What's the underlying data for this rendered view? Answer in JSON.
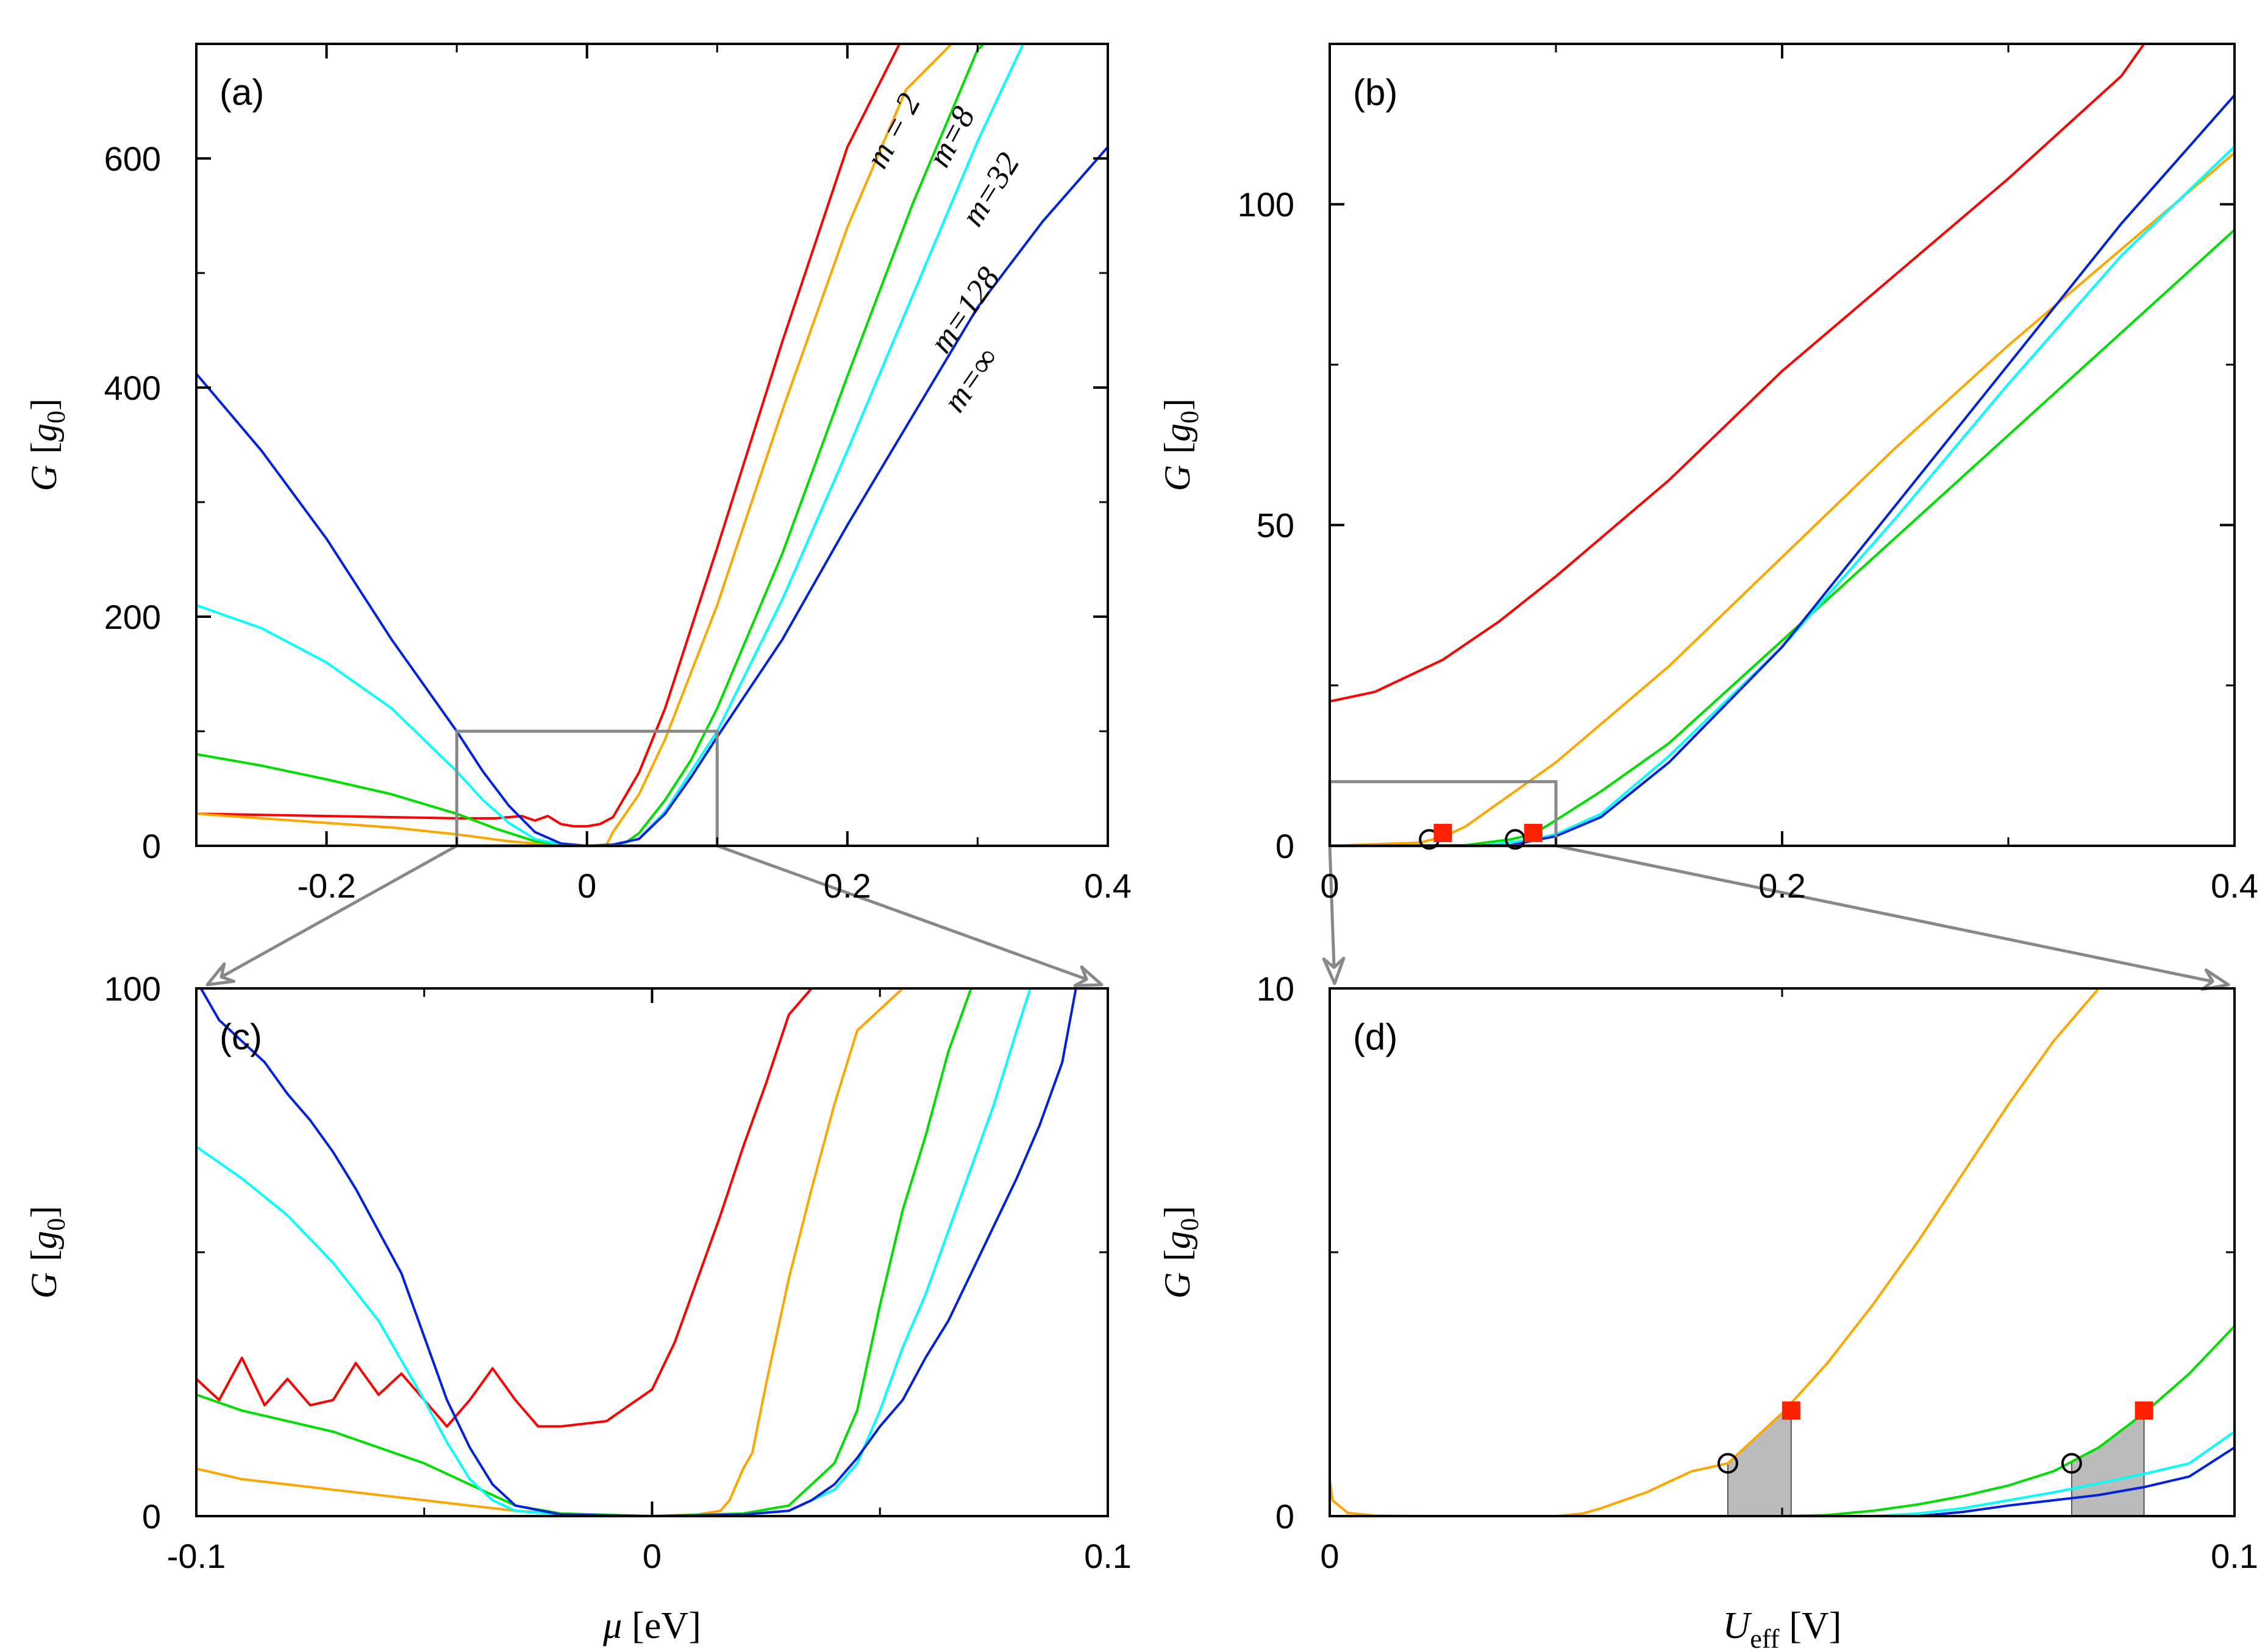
{
  "colors": {
    "m2": "#ff0000",
    "m8": "#ffa500",
    "m32": "#00dd00",
    "m128": "#00ffff",
    "minf": "#0022dd",
    "frame": "#000000",
    "zoom": "#888888",
    "marker_open": "#000000",
    "marker_filled": "#ff2200",
    "shade": "#bbbbbb"
  },
  "chart_data": [
    {
      "id": "a",
      "type": "line",
      "panel_label": "(a)",
      "xlim": [
        -0.3,
        0.4
      ],
      "ylim": [
        0,
        700
      ],
      "x_ticks": [
        -0.2,
        0,
        0.2,
        0.4
      ],
      "x_tick_labels": [
        "-0.2",
        "0",
        "0.2",
        "0.4"
      ],
      "y_ticks": [
        0,
        200,
        400,
        600
      ],
      "y_tick_labels": [
        "0",
        "200",
        "400",
        "600"
      ],
      "ylabel_var": "G",
      "ylabel_unit": "g",
      "ylabel_unit_sub": "0",
      "xlabel": "",
      "grid": false,
      "series": [
        {
          "key": "m2",
          "name": "m = 2",
          "x": [
            -0.3,
            -0.25,
            -0.2,
            -0.15,
            -0.1,
            -0.07,
            -0.05,
            -0.04,
            -0.03,
            -0.02,
            -0.01,
            0.0,
            0.01,
            0.02,
            0.04,
            0.06,
            0.1,
            0.15,
            0.2,
            0.24
          ],
          "y": [
            28,
            27,
            26,
            25,
            24,
            24,
            26,
            22,
            26,
            19,
            17,
            17,
            19,
            25,
            64,
            120,
            260,
            440,
            610,
            700
          ]
        },
        {
          "key": "m8",
          "name": "m=8",
          "x": [
            -0.3,
            -0.25,
            -0.2,
            -0.15,
            -0.1,
            -0.06,
            -0.03,
            0.0,
            0.015,
            0.02,
            0.04,
            0.06,
            0.1,
            0.15,
            0.2,
            0.245,
            0.28
          ],
          "y": [
            28,
            24,
            20,
            16,
            10,
            4,
            1,
            0,
            1,
            12,
            45,
            93,
            210,
            380,
            540,
            660,
            700
          ]
        },
        {
          "key": "m32",
          "name": "m=32",
          "x": [
            -0.3,
            -0.25,
            -0.2,
            -0.15,
            -0.1,
            -0.07,
            -0.04,
            -0.02,
            0.0,
            0.02,
            0.03,
            0.04,
            0.06,
            0.08,
            0.1,
            0.15,
            0.2,
            0.25,
            0.3,
            0.305
          ],
          "y": [
            80,
            70,
            58,
            45,
            28,
            15,
            4,
            1,
            0,
            1,
            3,
            11,
            40,
            75,
            120,
            255,
            410,
            560,
            695,
            700
          ]
        },
        {
          "key": "m128",
          "name": "m=128",
          "x": [
            -0.3,
            -0.25,
            -0.2,
            -0.15,
            -0.1,
            -0.08,
            -0.06,
            -0.04,
            -0.02,
            0.0,
            0.02,
            0.04,
            0.06,
            0.08,
            0.1,
            0.15,
            0.2,
            0.25,
            0.3,
            0.335
          ],
          "y": [
            210,
            190,
            160,
            120,
            65,
            40,
            20,
            6,
            1,
            0,
            1,
            6,
            30,
            65,
            100,
            215,
            345,
            480,
            615,
            700
          ]
        },
        {
          "key": "minf",
          "name": "m=∞",
          "x": [
            -0.3,
            -0.25,
            -0.2,
            -0.15,
            -0.1,
            -0.08,
            -0.06,
            -0.04,
            -0.02,
            0.0,
            0.02,
            0.04,
            0.06,
            0.08,
            0.1,
            0.15,
            0.2,
            0.25,
            0.3,
            0.35,
            0.4
          ],
          "y": [
            412,
            345,
            268,
            180,
            100,
            65,
            35,
            12,
            2,
            0,
            1,
            6,
            28,
            60,
            95,
            180,
            280,
            375,
            470,
            545,
            610
          ]
        }
      ],
      "annotations": [
        "m = 2",
        "m=8",
        "m=32",
        "m=128",
        "m=∞"
      ],
      "zoom_box": {
        "x": [
          -0.1,
          0.1
        ],
        "y": [
          0,
          100
        ]
      }
    },
    {
      "id": "b",
      "type": "line",
      "panel_label": "(b)",
      "xlim": [
        0,
        0.4
      ],
      "ylim": [
        0,
        125
      ],
      "x_ticks": [
        0,
        0.2,
        0.4
      ],
      "x_tick_labels": [
        "0",
        "0.2",
        "0.4"
      ],
      "y_ticks": [
        0,
        50,
        100
      ],
      "y_tick_labels": [
        "0",
        "50",
        "100"
      ],
      "ylabel_var": "G",
      "ylabel_unit": "g",
      "ylabel_unit_sub": "0",
      "xlabel": "",
      "grid": false,
      "series": [
        {
          "key": "m2",
          "x": [
            0,
            0.02,
            0.05,
            0.075,
            0.1,
            0.15,
            0.2,
            0.25,
            0.3,
            0.35,
            0.36
          ],
          "y": [
            22.5,
            24,
            29,
            35,
            42,
            57,
            74,
            89,
            104,
            120,
            125
          ]
        },
        {
          "key": "m8",
          "x": [
            0,
            0.04,
            0.05,
            0.06,
            0.08,
            0.1,
            0.15,
            0.2,
            0.25,
            0.3,
            0.35,
            0.4
          ],
          "y": [
            0,
            0.5,
            1.4,
            3,
            8,
            13,
            28,
            45,
            62,
            78,
            93,
            108
          ]
        },
        {
          "key": "m32",
          "x": [
            0,
            0.06,
            0.08,
            0.09,
            0.1,
            0.12,
            0.15,
            0.2,
            0.25,
            0.3,
            0.35,
            0.4
          ],
          "y": [
            0,
            0.1,
            1,
            1.8,
            4,
            8.5,
            16,
            32,
            48,
            64,
            80,
            96
          ]
        },
        {
          "key": "m128",
          "x": [
            0,
            0.07,
            0.09,
            0.1,
            0.12,
            0.15,
            0.2,
            0.25,
            0.3,
            0.35,
            0.4
          ],
          "y": [
            0,
            0.1,
            1,
            1.8,
            5,
            14,
            31,
            51,
            72,
            92,
            109
          ]
        },
        {
          "key": "minf",
          "x": [
            0,
            0.08,
            0.09,
            0.1,
            0.12,
            0.15,
            0.2,
            0.25,
            0.3,
            0.35,
            0.4
          ],
          "y": [
            0,
            0.1,
            0.8,
            1.5,
            4.5,
            13,
            31,
            53,
            75,
            97,
            117
          ]
        }
      ],
      "markers": {
        "open": [
          {
            "x": 0.044,
            "y": 1
          },
          {
            "x": 0.082,
            "y": 1
          }
        ],
        "filled": [
          {
            "x": 0.05,
            "y": 2
          },
          {
            "x": 0.09,
            "y": 2
          }
        ]
      },
      "zoom_box": {
        "x": [
          0,
          0.1
        ],
        "y": [
          0,
          10
        ]
      }
    },
    {
      "id": "c",
      "type": "line",
      "panel_label": "(c)",
      "xlim": [
        -0.1,
        0.1
      ],
      "ylim": [
        0,
        100
      ],
      "x_ticks": [
        -0.1,
        0,
        0.1
      ],
      "x_tick_labels": [
        "-0.1",
        "0",
        "0.1"
      ],
      "y_ticks": [
        0,
        100
      ],
      "y_tick_labels": [
        "0",
        "100"
      ],
      "ylabel_var": "G",
      "ylabel_unit": "g",
      "ylabel_unit_sub": "0",
      "xlabel_var": "μ",
      "xlabel_unit": "eV",
      "grid": false,
      "series": [
        {
          "key": "m2",
          "x": [
            -0.1,
            -0.095,
            -0.09,
            -0.085,
            -0.08,
            -0.075,
            -0.07,
            -0.065,
            -0.06,
            -0.055,
            -0.05,
            -0.045,
            -0.04,
            -0.035,
            -0.03,
            -0.025,
            -0.02,
            -0.01,
            0.0,
            0.005,
            0.01,
            0.015,
            0.02,
            0.025,
            0.03,
            0.035
          ],
          "y": [
            26,
            22,
            30,
            21,
            26,
            21,
            22,
            29,
            23,
            27,
            22,
            17,
            22,
            28,
            22,
            17,
            17,
            18,
            24,
            33,
            45,
            57,
            70,
            82,
            95,
            100
          ]
        },
        {
          "key": "m8",
          "x": [
            -0.1,
            -0.09,
            -0.08,
            -0.07,
            -0.06,
            -0.05,
            -0.04,
            -0.03,
            -0.02,
            -0.01,
            0.0,
            0.01,
            0.015,
            0.017,
            0.02,
            0.022,
            0.025,
            0.03,
            0.035,
            0.04,
            0.045,
            0.055
          ],
          "y": [
            9,
            7,
            6,
            5,
            4,
            3,
            2,
            1,
            0.5,
            0.2,
            0,
            0.3,
            1,
            3,
            9,
            12,
            25,
            45,
            62,
            78,
            92,
            100
          ]
        },
        {
          "key": "m32",
          "x": [
            -0.1,
            -0.09,
            -0.08,
            -0.07,
            -0.06,
            -0.05,
            -0.04,
            -0.03,
            -0.02,
            0.0,
            0.02,
            0.03,
            0.04,
            0.045,
            0.05,
            0.055,
            0.06,
            0.065,
            0.07
          ],
          "y": [
            23,
            20,
            18,
            16,
            13,
            10,
            6,
            2,
            0.5,
            0,
            0.5,
            2,
            10,
            20,
            40,
            58,
            72,
            88,
            100
          ]
        },
        {
          "key": "m128",
          "x": [
            -0.1,
            -0.09,
            -0.08,
            -0.07,
            -0.06,
            -0.05,
            -0.045,
            -0.04,
            -0.035,
            -0.03,
            -0.02,
            0.0,
            0.02,
            0.03,
            0.04,
            0.045,
            0.05,
            0.055,
            0.06,
            0.065,
            0.07,
            0.075,
            0.08,
            0.083
          ],
          "y": [
            70,
            64,
            57,
            48,
            37,
            22,
            14,
            7,
            3,
            1,
            0.3,
            0,
            0.3,
            1,
            5,
            10,
            20,
            32,
            42,
            54,
            66,
            78,
            92,
            100
          ]
        },
        {
          "key": "minf",
          "x": [
            -0.099,
            -0.095,
            -0.09,
            -0.085,
            -0.08,
            -0.075,
            -0.07,
            -0.065,
            -0.06,
            -0.055,
            -0.05,
            -0.045,
            -0.04,
            -0.035,
            -0.03,
            -0.02,
            0.0,
            0.02,
            0.03,
            0.035,
            0.04,
            0.045,
            0.05,
            0.055,
            0.06,
            0.065,
            0.07,
            0.075,
            0.08,
            0.085,
            0.09,
            0.093
          ],
          "y": [
            100,
            94,
            90,
            86,
            80,
            75,
            69,
            62,
            54,
            46,
            34,
            22,
            13,
            6,
            2,
            0.3,
            0,
            0.3,
            1,
            3,
            6,
            11,
            17,
            22,
            30,
            37,
            46,
            55,
            64,
            74,
            86,
            100
          ]
        }
      ]
    },
    {
      "id": "d",
      "type": "line",
      "panel_label": "(d)",
      "xlim": [
        0,
        0.1
      ],
      "ylim": [
        0,
        10
      ],
      "x_ticks": [
        0,
        0.1
      ],
      "x_tick_labels": [
        "0",
        "0.1"
      ],
      "y_ticks": [
        0,
        10
      ],
      "y_tick_labels": [
        "0",
        "10"
      ],
      "ylabel_var": "G",
      "ylabel_unit": "g",
      "ylabel_unit_sub": "0",
      "xlabel_var": "U",
      "xlabel_sub": "eff",
      "xlabel_unit": "V",
      "grid": false,
      "series": [
        {
          "key": "m8",
          "x": [
            0,
            0.0003,
            0.002,
            0.005,
            0.01,
            0.02,
            0.025,
            0.028,
            0.03,
            0.035,
            0.04,
            0.044,
            0.05,
            0.055,
            0.06,
            0.065,
            0.07,
            0.075,
            0.08,
            0.085
          ],
          "y": [
            0.7,
            0.3,
            0.06,
            0.01,
            0,
            0,
            0,
            0.05,
            0.15,
            0.45,
            0.85,
            1.0,
            1.95,
            2.9,
            4.0,
            5.2,
            6.5,
            7.8,
            9.0,
            10
          ]
        },
        {
          "key": "m32",
          "x": [
            0,
            0.05,
            0.055,
            0.06,
            0.065,
            0.07,
            0.075,
            0.08,
            0.085,
            0.09,
            0.095,
            0.1
          ],
          "y": [
            0,
            0,
            0.02,
            0.1,
            0.22,
            0.38,
            0.58,
            0.85,
            1.3,
            1.95,
            2.7,
            3.6
          ]
        },
        {
          "key": "m128",
          "x": [
            0,
            0.06,
            0.065,
            0.07,
            0.075,
            0.08,
            0.085,
            0.09,
            0.095,
            0.1
          ],
          "y": [
            0,
            0,
            0.05,
            0.15,
            0.3,
            0.45,
            0.62,
            0.8,
            1.0,
            1.6
          ]
        },
        {
          "key": "minf",
          "x": [
            0,
            0.065,
            0.07,
            0.075,
            0.08,
            0.085,
            0.09,
            0.095,
            0.1
          ],
          "y": [
            0,
            0,
            0.08,
            0.2,
            0.3,
            0.4,
            0.55,
            0.75,
            1.3
          ]
        }
      ],
      "markers": {
        "open": [
          {
            "x": 0.044,
            "y": 1.0
          },
          {
            "x": 0.082,
            "y": 1.0
          }
        ],
        "filled": [
          {
            "x": 0.051,
            "y": 2.0
          },
          {
            "x": 0.09,
            "y": 2.0
          }
        ]
      },
      "shaded_regions": [
        {
          "x": [
            0.044,
            0.051
          ]
        },
        {
          "x": [
            0.082,
            0.09
          ]
        }
      ]
    }
  ]
}
